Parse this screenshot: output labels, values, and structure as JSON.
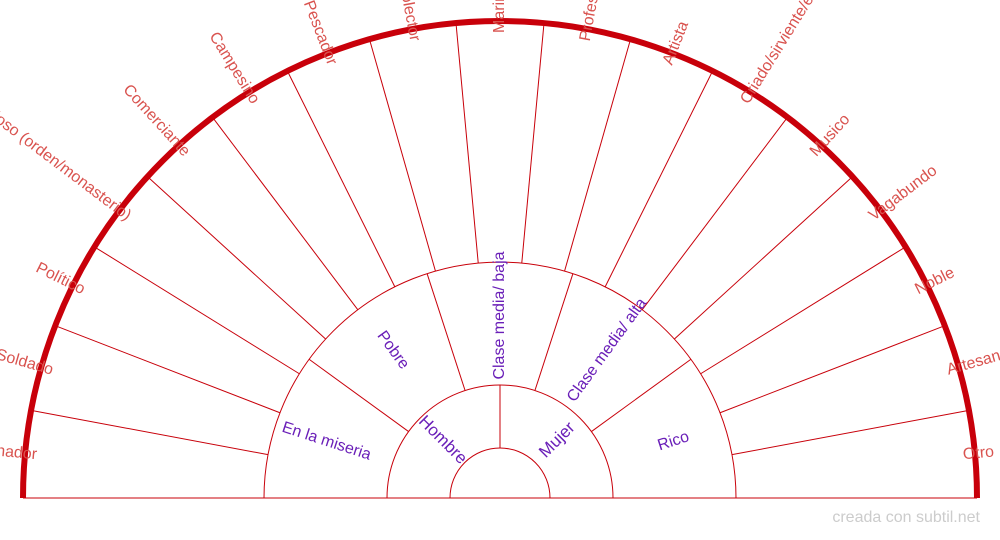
{
  "credit": "creada con subtil.net",
  "colors": {
    "outline": "#c8000a",
    "outer_text": "#d9534f",
    "inner_text": "#6a1fb8",
    "credit": "#cccccc"
  },
  "rings": {
    "inner": [
      "Hombre",
      "Mujer"
    ],
    "middle": [
      "En la miseria",
      "Pobre",
      "Clase media/ baja",
      "Clase media/ alta",
      "Rico"
    ],
    "outer": [
      "Sanador",
      "Soldado",
      "Político",
      "Religioso (orden/monasterio)",
      "Comerciante",
      "Campesino",
      "Pescador",
      "Cazador/recolector",
      "Marinero",
      "Profesor/erudito",
      "Artista",
      "Criado/sirviente/esclavo",
      "Musico",
      "Vagabundo",
      "Noble",
      "Artesano/Peon",
      "Otro"
    ]
  }
}
